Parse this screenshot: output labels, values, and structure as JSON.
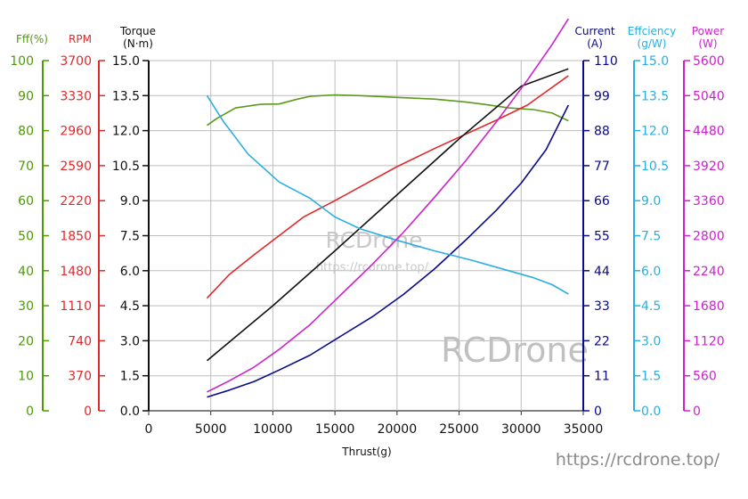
{
  "chart_data": {
    "type": "line",
    "xlabel": "Thrust(g)",
    "x_ticks": [
      0,
      5000,
      10000,
      15000,
      20000,
      25000,
      30000,
      35000
    ],
    "xlim": [
      0,
      35000
    ],
    "axes": {
      "eff": {
        "label": [
          "Fff(%)"
        ],
        "ticks": [
          0,
          10,
          20,
          30,
          40,
          50,
          60,
          70,
          80,
          90,
          100
        ],
        "range": [
          0,
          100
        ],
        "color": "#4e9a06"
      },
      "rpm": {
        "label": [
          "RPM"
        ],
        "ticks": [
          0,
          370,
          740,
          1110,
          1480,
          1850,
          2220,
          2590,
          2960,
          3330,
          3700
        ],
        "range": [
          0,
          3700
        ],
        "color": "#e0292b"
      },
      "torque": {
        "label": [
          "Torque",
          "(N·m)"
        ],
        "ticks": [
          "0.0",
          "1.5",
          "3.0",
          "4.5",
          "6.0",
          "7.5",
          "9.0",
          "10.5",
          "12.0",
          "13.5",
          "15.0"
        ],
        "range": [
          0,
          15
        ],
        "color": "#111111"
      },
      "current": {
        "label": [
          "Current",
          "(A)"
        ],
        "ticks": [
          0,
          11,
          22,
          33,
          44,
          55,
          66,
          77,
          88,
          99,
          110
        ],
        "range": [
          0,
          110
        ],
        "color": "#0a0a8a"
      },
      "gw": {
        "label": [
          "Effciency",
          "(g/W)"
        ],
        "ticks": [
          "0.0",
          "1.5",
          "3.0",
          "4.5",
          "6.0",
          "7.5",
          "9.0",
          "10.5",
          "12.0",
          "13.5",
          "15.0"
        ],
        "range": [
          0,
          15
        ],
        "color": "#2aaee0"
      },
      "power": {
        "label": [
          "Power",
          "(W)"
        ],
        "ticks": [
          0,
          560,
          1120,
          1680,
          2240,
          2800,
          3360,
          3920,
          4480,
          5040,
          5600
        ],
        "range": [
          0,
          5600
        ],
        "color": "#cc22cc"
      }
    },
    "series": [
      {
        "name": "Fff(%)",
        "axis": "eff",
        "color": "#5b9a1a",
        "x": [
          4700,
          5500,
          7000,
          9000,
          10500,
          12000,
          13000,
          15000,
          17000,
          20000,
          23000,
          25500,
          27000,
          29000,
          31000,
          32500,
          33800
        ],
        "y": [
          81.5,
          83.5,
          86.5,
          87.5,
          87.6,
          89,
          89.8,
          90.2,
          90,
          89.5,
          89,
          88.2,
          87.5,
          86.5,
          86,
          85,
          82.8
        ]
      },
      {
        "name": "RPM",
        "axis": "rpm",
        "color": "#e0292b",
        "x": [
          4700,
          6500,
          8500,
          10500,
          12500,
          15000,
          17500,
          20000,
          23000,
          25500,
          28000,
          30500,
          33800
        ],
        "y": [
          1190,
          1440,
          1650,
          1850,
          2050,
          2220,
          2400,
          2580,
          2770,
          2920,
          3070,
          3230,
          3540
        ]
      },
      {
        "name": "Torque",
        "axis": "torque",
        "color": "#111111",
        "x": [
          4700,
          10000,
          15000,
          20000,
          25000,
          30000,
          33800
        ],
        "y": [
          2.15,
          4.5,
          6.85,
          9.25,
          11.65,
          13.9,
          14.65
        ]
      },
      {
        "name": "Current",
        "axis": "current",
        "color": "#0a0a8a",
        "x": [
          4700,
          6500,
          8500,
          10500,
          13000,
          15500,
          18000,
          20500,
          23000,
          25500,
          28000,
          30000,
          32000,
          33800
        ],
        "y": [
          4.3,
          6.5,
          9.2,
          12.8,
          17.5,
          23.5,
          29.5,
          36.5,
          44.5,
          53.5,
          63,
          71.5,
          82,
          96
        ]
      },
      {
        "name": "Effciency",
        "axis": "gw",
        "color": "#2aaee0",
        "x": [
          4700,
          6000,
          8000,
          10500,
          13000,
          15000,
          17000,
          20000,
          23000,
          26000,
          29000,
          31000,
          32500,
          33800
        ],
        "y": [
          13.5,
          12.4,
          11,
          9.8,
          9.1,
          8.3,
          7.8,
          7.3,
          6.85,
          6.45,
          6.0,
          5.7,
          5.4,
          5.0
        ]
      },
      {
        "name": "Power",
        "axis": "power",
        "color": "#cc22cc",
        "x": [
          4700,
          6500,
          8500,
          10500,
          13000,
          15500,
          18000,
          20500,
          23000,
          25500,
          28000,
          30500,
          32500,
          33800
        ],
        "y": [
          300,
          480,
          700,
          980,
          1380,
          1860,
          2340,
          2850,
          3410,
          3990,
          4620,
          5290,
          5860,
          6270
        ]
      }
    ],
    "title": ""
  },
  "watermarks": {
    "center": "RCDrone",
    "center_url": "https://rcdrone.top/",
    "big": "RCDrone",
    "footer_url": "https://rcdrone.top/"
  }
}
